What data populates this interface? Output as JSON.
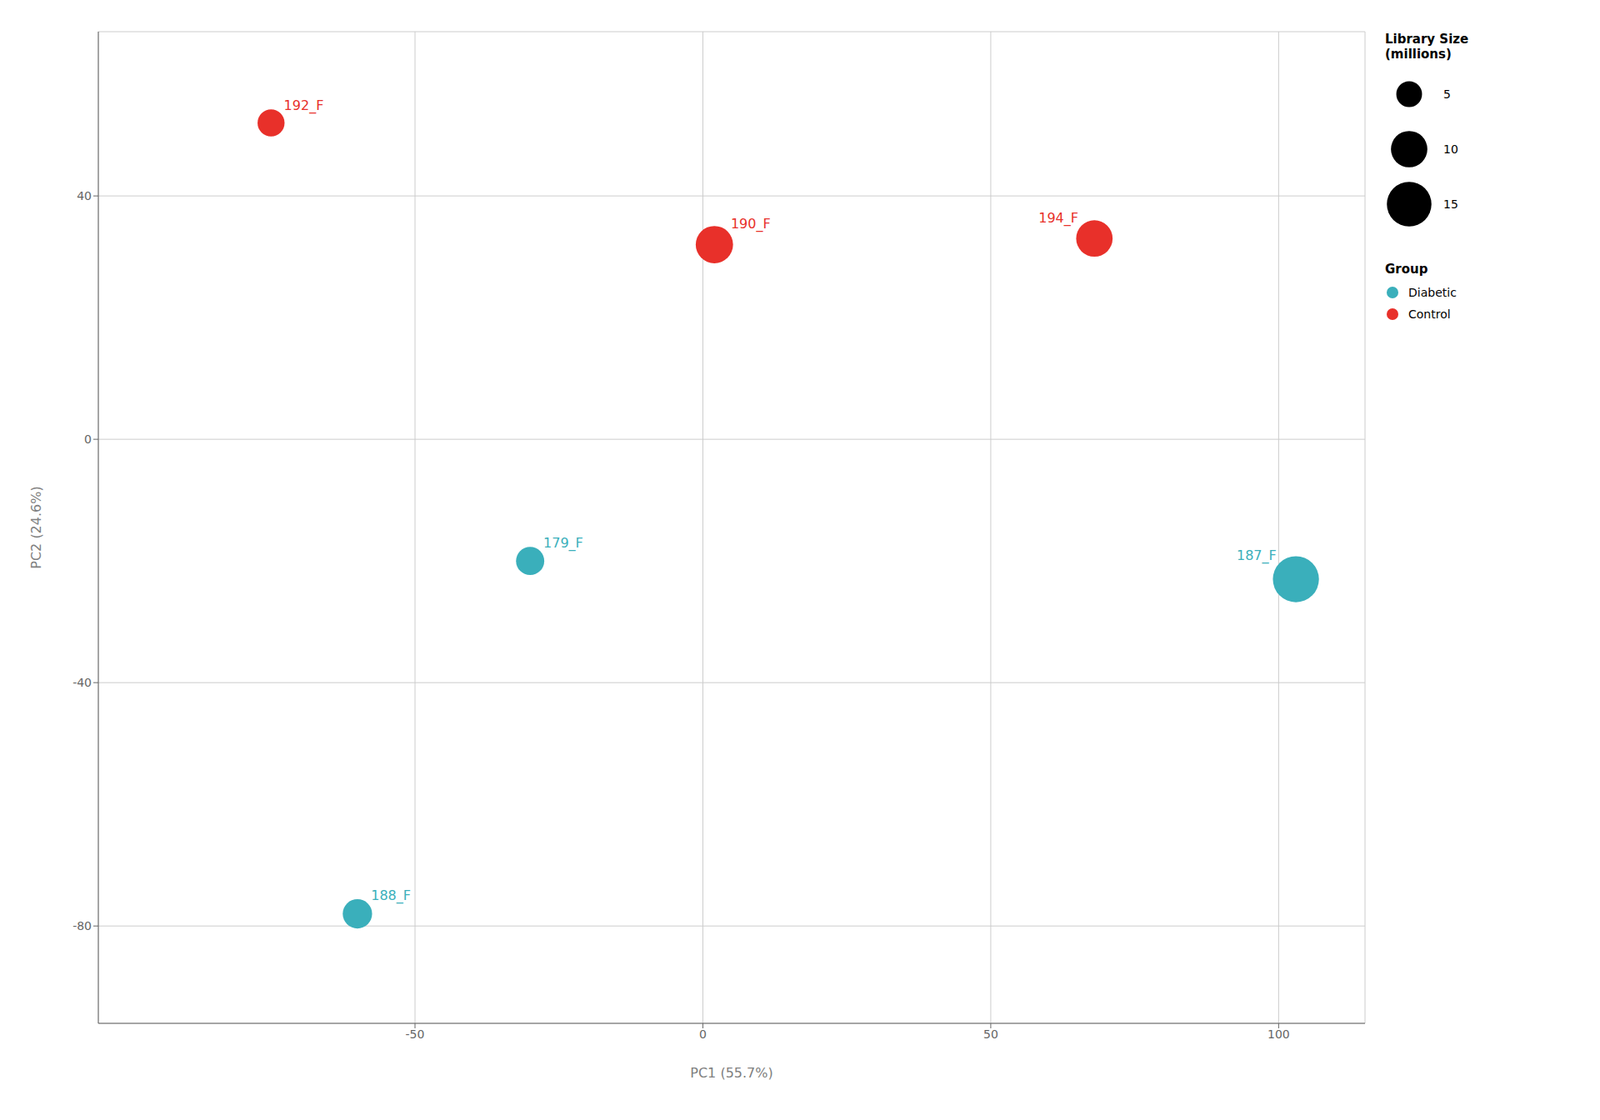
{
  "chart_data": {
    "type": "scatter",
    "xlabel": "PC1 (55.7%)",
    "ylabel": "PC2 (24.6%)",
    "xlim": [
      -105,
      115
    ],
    "ylim": [
      -96,
      67
    ],
    "xticks": [
      -50,
      0,
      50,
      100
    ],
    "yticks": [
      -80,
      -40,
      0,
      40
    ],
    "grid": true,
    "legend": "right",
    "legend_title": "Group",
    "size_legend_title": "Library Size\n(millions)",
    "size_legend_values": [
      5,
      10,
      15
    ],
    "series": [
      {
        "name": "Diabetic",
        "color": "#3AAFBB",
        "labels": [
          "179_F",
          "187_F",
          "188_F"
        ],
        "x": [
          -30,
          103,
          -60
        ],
        "y": [
          -20,
          -23,
          -78
        ],
        "size": [
          6.0,
          16.0,
          6.5
        ]
      },
      {
        "name": "Control",
        "color": "#E8302A",
        "labels": [
          "192_F",
          "190_F",
          "194_F"
        ],
        "x": [
          -75,
          2,
          68
        ],
        "y": [
          52,
          32,
          33
        ],
        "size": [
          5.5,
          10.5,
          10.0
        ]
      }
    ]
  }
}
